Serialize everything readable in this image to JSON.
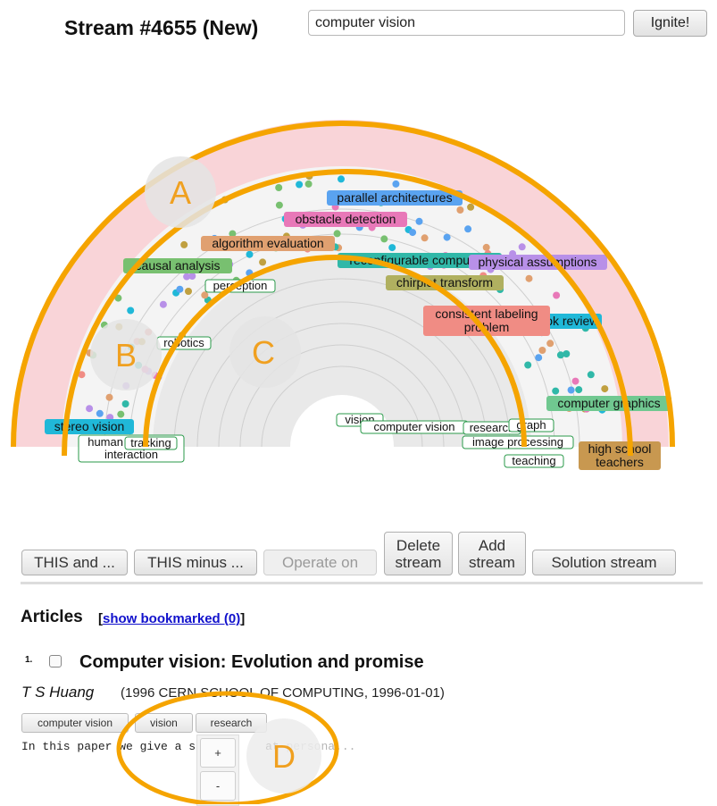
{
  "header": {
    "title": "Stream #4655 (New)",
    "search_value": "computer vision",
    "ignite_label": "Ignite!"
  },
  "visualization": {
    "tags_outer": [
      {
        "label": "parallel architectures",
        "color": "#5aa3f0"
      },
      {
        "label": "obstacle detection",
        "color": "#e878b8"
      },
      {
        "label": "algorithm evaluation",
        "color": "#e0a070"
      },
      {
        "label": "reconfigurable computing",
        "color": "#30b8a8"
      },
      {
        "label": "physical assumptions",
        "color": "#b890e8"
      },
      {
        "label": "causal analysis",
        "color": "#78c070"
      },
      {
        "label": "chirplet transform",
        "color": "#b0b060"
      },
      {
        "label": "consistent labeling problem",
        "color": "#f08c84"
      },
      {
        "label": "book review",
        "color": "#20b8d8"
      },
      {
        "label": "computer graphics",
        "color": "#70c890"
      },
      {
        "label": "stereo vision",
        "color": "#20b8d8"
      },
      {
        "label": "high school teachers",
        "color": "#c89850"
      }
    ],
    "tags_inner": [
      {
        "label": "perception"
      },
      {
        "label": "robotics"
      },
      {
        "label": "vision"
      },
      {
        "label": "computer vision"
      },
      {
        "label": "research"
      },
      {
        "label": "graph"
      },
      {
        "label": "image processing"
      },
      {
        "label": "teaching"
      },
      {
        "label": "human computer interaction"
      },
      {
        "label": "tracking"
      }
    ],
    "callouts": [
      "A",
      "B",
      "C",
      "D"
    ],
    "colors": {
      "outer_band": "#f9d4d8",
      "mid_band": "#f4f4f4",
      "inner_band": "#e9e9e9",
      "highlight": "#f5a400",
      "inner_tag_border": "#2a9a4a"
    }
  },
  "operations": {
    "this_and": "THIS and ...",
    "this_minus": "THIS minus ...",
    "operate_on": "Operate on",
    "delete_stream_1": "Delete",
    "delete_stream_2": "stream",
    "add_stream_1": "Add",
    "add_stream_2": "stream",
    "solution_stream": "Solution stream"
  },
  "articles": {
    "heading": "Articles",
    "bookmark_open": "[",
    "bookmark_link": "show bookmarked (0)",
    "bookmark_close": "]",
    "items": [
      {
        "number": "1.",
        "title": "Computer vision: Evolution and promise",
        "author": "T S Huang",
        "source": "(1996 CERN SCHOOL OF COMPUTING, 1996-01-01)",
        "keywords": [
          "computer vision",
          "vision",
          "research"
        ],
        "abstract_visible": "In this paper we give a s",
        "abstract_mid": "at",
        "abstract_faded": " persona..."
      }
    ]
  },
  "popup": {
    "plus": "+",
    "minus": "-"
  }
}
